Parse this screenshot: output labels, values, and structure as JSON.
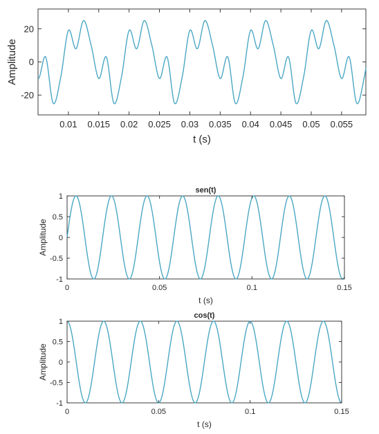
{
  "chart_data": [
    {
      "type": "line",
      "title": "",
      "xlabel": "t (s)",
      "ylabel": "Amplitude",
      "xlim": [
        0.005,
        0.059
      ],
      "ylim": [
        -32,
        32
      ],
      "xticks": [
        0.01,
        0.015,
        0.02,
        0.025,
        0.03,
        0.035,
        0.04,
        0.045,
        0.05,
        0.055
      ],
      "xtick_labels": [
        "0.01",
        "0.015",
        "0.02",
        "0.025",
        "0.03",
        "0.035",
        "0.04",
        "0.045",
        "0.05",
        "0.055"
      ],
      "yticks": [
        20,
        0,
        -20
      ],
      "ytick_labels": [
        "20",
        "0",
        "-20"
      ],
      "grid": false,
      "line_color": "#4aa7c4",
      "series": [
        {
          "t": [
            0.005,
            0.00625,
            0.0075,
            0.00875,
            0.01,
            0.01125,
            0.0125,
            0.01375,
            0.015,
            0.01625,
            0.0175,
            0.01875,
            0.02
          ],
          "values": [
            -10,
            3,
            -25,
            -9,
            19,
            8,
            25,
            10,
            12,
            0,
            -25,
            -10,
            -17
          ]
        }
      ]
    },
    {
      "type": "line",
      "title": "sen(t)",
      "xlabel": "t (s)",
      "ylabel": "Amplitude",
      "xlim": [
        0,
        0.15
      ],
      "ylim": [
        -1,
        1
      ],
      "xticks": [
        0,
        0.05,
        0.1,
        0.15
      ],
      "xtick_labels": [
        "0",
        "0.05",
        "0.1",
        "0.15"
      ],
      "yticks": [
        1,
        0.5,
        0,
        -0.5,
        -1
      ],
      "ytick_labels": [
        "1",
        "0.5",
        "0",
        "-0.5",
        "-1"
      ],
      "grid": false,
      "line_color": "#4aa7c4",
      "series": [
        {
          "function": "sin",
          "frequency_hz": 52,
          "amplitude": 1
        }
      ]
    },
    {
      "type": "line",
      "title": "cos(t)",
      "xlabel": "t (s)",
      "ylabel": "Amplitude",
      "xlim": [
        0,
        0.15
      ],
      "ylim": [
        -1,
        1
      ],
      "xticks": [
        0,
        0.05,
        0.1,
        0.15
      ],
      "xtick_labels": [
        "0",
        "0.05",
        "0.1",
        "0.15"
      ],
      "yticks": [
        1,
        0.5,
        0,
        -0.5,
        -1
      ],
      "ytick_labels": [
        "1",
        "0.5",
        "0",
        "-0.5",
        "-1"
      ],
      "grid": false,
      "line_color": "#4aa7c4",
      "series": [
        {
          "function": "cos",
          "frequency_hz": 50,
          "amplitude": 1
        }
      ]
    }
  ]
}
